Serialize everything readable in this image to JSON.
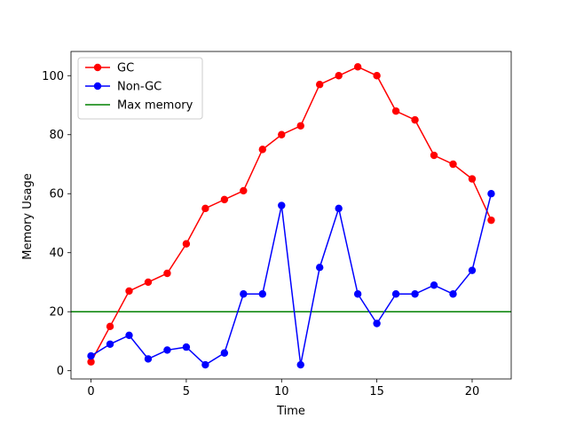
{
  "chart_data": {
    "type": "line",
    "title": "",
    "xlabel": "Time",
    "ylabel": "Memory Usage",
    "xlim": [
      -1.05,
      22.05
    ],
    "ylim": [
      -2.8,
      108.2
    ],
    "xticks": [
      0,
      5,
      10,
      15,
      20
    ],
    "yticks": [
      0,
      20,
      40,
      60,
      80,
      100
    ],
    "grid": false,
    "legend_position": "upper left",
    "x": [
      0,
      1,
      2,
      3,
      4,
      5,
      6,
      7,
      8,
      9,
      10,
      11,
      12,
      13,
      14,
      15,
      16,
      17,
      18,
      19,
      20,
      21
    ],
    "series": [
      {
        "name": "GC",
        "color": "#ff0000",
        "marker": "circle",
        "values": [
          3,
          15,
          27,
          30,
          33,
          43,
          55,
          58,
          61,
          75,
          80,
          83,
          97,
          100,
          103,
          100,
          88,
          85,
          73,
          70,
          65,
          51
        ]
      },
      {
        "name": "Non-GC",
        "color": "#0000ff",
        "marker": "circle",
        "values": [
          5,
          9,
          12,
          4,
          7,
          8,
          2,
          6,
          26,
          26,
          56,
          2,
          35,
          55,
          26,
          16,
          26,
          26,
          29,
          26,
          34,
          60
        ]
      }
    ],
    "hlines": [
      {
        "name": "Max memory",
        "color": "#008000",
        "y": 20
      }
    ]
  }
}
